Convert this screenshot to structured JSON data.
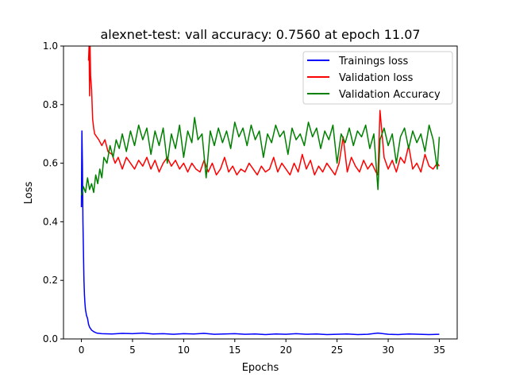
{
  "chart_data": {
    "type": "line",
    "title": "alexnet-test: vall accuracy: 0.7560 at epoch 11.07",
    "xlabel": "Epochs",
    "ylabel": "Loss",
    "xlim": [
      -1.75,
      36.75
    ],
    "ylim": [
      0.0,
      1.0
    ],
    "xticks": [
      0,
      5,
      10,
      15,
      20,
      25,
      30,
      35
    ],
    "yticks": [
      0.0,
      0.2,
      0.4,
      0.6,
      0.8,
      1.0
    ],
    "xtick_labels": [
      "0",
      "5",
      "10",
      "15",
      "20",
      "25",
      "30",
      "35"
    ],
    "ytick_labels": [
      "0.0",
      "0.2",
      "0.4",
      "0.6",
      "0.8",
      "1.0"
    ],
    "grid": false,
    "legend_position": "top-right",
    "series": [
      {
        "name": "Trainings loss",
        "color": "#0000ff",
        "x": [
          0,
          0.05,
          0.1,
          0.15,
          0.2,
          0.25,
          0.3,
          0.35,
          0.4,
          0.5,
          0.6,
          0.7,
          0.8,
          0.9,
          1.0,
          1.2,
          1.5,
          2,
          3,
          4,
          5,
          6,
          7,
          8,
          9,
          10,
          11,
          12,
          13,
          14,
          15,
          16,
          17,
          18,
          19,
          20,
          21,
          22,
          23,
          24,
          25,
          26,
          27,
          28,
          29,
          30,
          31,
          32,
          33,
          34,
          35
        ],
        "y": [
          0.45,
          0.71,
          0.6,
          0.4,
          0.3,
          0.2,
          0.15,
          0.12,
          0.1,
          0.08,
          0.07,
          0.05,
          0.04,
          0.035,
          0.03,
          0.025,
          0.02,
          0.018,
          0.017,
          0.019,
          0.018,
          0.02,
          0.017,
          0.018,
          0.016,
          0.018,
          0.017,
          0.019,
          0.016,
          0.017,
          0.018,
          0.016,
          0.017,
          0.015,
          0.017,
          0.016,
          0.018,
          0.016,
          0.017,
          0.015,
          0.016,
          0.017,
          0.015,
          0.016,
          0.02,
          0.016,
          0.015,
          0.017,
          0.016,
          0.015,
          0.016
        ]
      },
      {
        "name": "Validation loss",
        "color": "#ff0000",
        "x": [
          0.7,
          0.75,
          0.8,
          0.85,
          0.9,
          1.0,
          1.1,
          1.2,
          1.3,
          1.5,
          1.7,
          2.0,
          2.3,
          2.6,
          3.0,
          3.3,
          3.6,
          4.0,
          4.4,
          4.8,
          5.2,
          5.6,
          6.0,
          6.4,
          6.8,
          7.2,
          7.6,
          8.0,
          8.4,
          8.8,
          9.2,
          9.6,
          10.0,
          10.4,
          10.8,
          11.2,
          11.6,
          12.0,
          12.4,
          12.8,
          13.2,
          13.6,
          14.0,
          14.4,
          14.8,
          15.2,
          15.6,
          16.0,
          16.4,
          16.8,
          17.2,
          17.6,
          18.0,
          18.4,
          18.8,
          19.2,
          19.6,
          20.0,
          20.4,
          20.8,
          21.2,
          21.6,
          22.0,
          22.4,
          22.8,
          23.2,
          23.6,
          24.0,
          24.4,
          24.8,
          25.2,
          25.6,
          26.0,
          26.4,
          26.8,
          27.2,
          27.6,
          28.0,
          28.4,
          28.8,
          29.0,
          29.2,
          29.6,
          30.0,
          30.4,
          30.8,
          31.2,
          31.6,
          32.0,
          32.4,
          32.8,
          33.2,
          33.6,
          34.0,
          34.4,
          34.8,
          35.0
        ],
        "y": [
          0.95,
          1.0,
          0.83,
          1.0,
          0.9,
          0.85,
          0.75,
          0.72,
          0.7,
          0.69,
          0.68,
          0.66,
          0.68,
          0.64,
          0.63,
          0.6,
          0.62,
          0.58,
          0.62,
          0.6,
          0.58,
          0.61,
          0.59,
          0.62,
          0.58,
          0.61,
          0.57,
          0.6,
          0.62,
          0.59,
          0.61,
          0.58,
          0.6,
          0.57,
          0.6,
          0.58,
          0.57,
          0.61,
          0.57,
          0.6,
          0.56,
          0.58,
          0.62,
          0.57,
          0.59,
          0.56,
          0.58,
          0.57,
          0.6,
          0.58,
          0.56,
          0.59,
          0.57,
          0.58,
          0.62,
          0.57,
          0.6,
          0.58,
          0.56,
          0.6,
          0.57,
          0.63,
          0.58,
          0.61,
          0.56,
          0.59,
          0.57,
          0.6,
          0.58,
          0.56,
          0.6,
          0.69,
          0.57,
          0.62,
          0.59,
          0.57,
          0.61,
          0.58,
          0.6,
          0.57,
          0.56,
          0.78,
          0.62,
          0.58,
          0.61,
          0.57,
          0.62,
          0.6,
          0.66,
          0.58,
          0.6,
          0.57,
          0.63,
          0.59,
          0.58,
          0.6,
          0.59
        ]
      },
      {
        "name": "Validation Accuracy",
        "color": "#008000",
        "x": [
          0,
          0.2,
          0.4,
          0.6,
          0.8,
          1.0,
          1.2,
          1.4,
          1.6,
          1.8,
          2.0,
          2.2,
          2.5,
          2.8,
          3.1,
          3.4,
          3.7,
          4.0,
          4.4,
          4.8,
          5.2,
          5.6,
          6.0,
          6.4,
          6.8,
          7.2,
          7.6,
          8.0,
          8.4,
          8.8,
          9.2,
          9.6,
          10.0,
          10.4,
          10.8,
          11.07,
          11.4,
          11.8,
          12.2,
          12.6,
          13.0,
          13.4,
          13.8,
          14.2,
          14.6,
          15.0,
          15.4,
          15.8,
          16.2,
          16.6,
          17.0,
          17.4,
          17.8,
          18.2,
          18.6,
          19.0,
          19.4,
          19.8,
          20.2,
          20.6,
          21.0,
          21.4,
          21.8,
          22.2,
          22.6,
          23.0,
          23.4,
          23.8,
          24.2,
          24.6,
          25.0,
          25.4,
          25.8,
          26.2,
          26.6,
          27.0,
          27.4,
          27.8,
          28.2,
          28.6,
          29.0,
          29.2,
          29.6,
          30.0,
          30.4,
          30.8,
          31.2,
          31.6,
          32.0,
          32.4,
          32.8,
          33.2,
          33.6,
          34.0,
          34.4,
          34.8,
          35.0
        ],
        "y": [
          0.49,
          0.52,
          0.5,
          0.55,
          0.51,
          0.53,
          0.5,
          0.56,
          0.53,
          0.58,
          0.55,
          0.62,
          0.6,
          0.66,
          0.62,
          0.68,
          0.65,
          0.7,
          0.64,
          0.71,
          0.66,
          0.73,
          0.68,
          0.72,
          0.63,
          0.71,
          0.66,
          0.72,
          0.6,
          0.7,
          0.65,
          0.73,
          0.62,
          0.71,
          0.67,
          0.756,
          0.68,
          0.7,
          0.55,
          0.71,
          0.66,
          0.72,
          0.67,
          0.71,
          0.65,
          0.74,
          0.69,
          0.72,
          0.66,
          0.73,
          0.68,
          0.71,
          0.62,
          0.7,
          0.67,
          0.73,
          0.69,
          0.71,
          0.63,
          0.72,
          0.68,
          0.7,
          0.66,
          0.74,
          0.69,
          0.72,
          0.65,
          0.71,
          0.68,
          0.73,
          0.6,
          0.7,
          0.67,
          0.72,
          0.66,
          0.71,
          0.69,
          0.73,
          0.65,
          0.7,
          0.51,
          0.68,
          0.72,
          0.66,
          0.7,
          0.6,
          0.69,
          0.72,
          0.65,
          0.71,
          0.67,
          0.7,
          0.64,
          0.73,
          0.68,
          0.58,
          0.69
        ]
      }
    ]
  }
}
